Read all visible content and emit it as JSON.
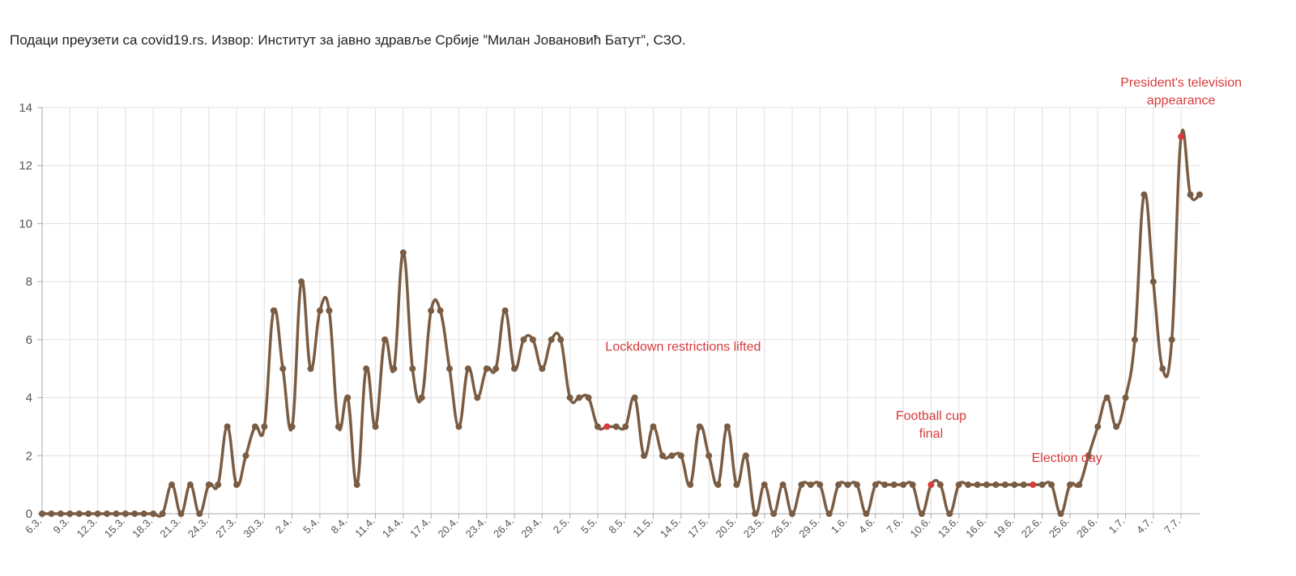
{
  "source_note": "Подаци преузети са covid19.rs. Извор: Институт за јавно здравље Србије ”Милан Јовановић Батут”, СЗО.",
  "colors": {
    "line": "#7a5c43",
    "highlight": "#d93a3a",
    "grid": "#e0e0e0",
    "axis": "#aaaaaa"
  },
  "chart_data": {
    "type": "line",
    "title": "",
    "xlabel": "",
    "ylabel": "",
    "ylim": [
      0,
      14
    ],
    "yticks": [
      0,
      2,
      4,
      6,
      8,
      10,
      12,
      14
    ],
    "grid": true,
    "x_start_date": "6.3.",
    "x_tick_labels": [
      "6.3.",
      "9.3.",
      "12.3.",
      "15.3.",
      "18.3.",
      "21.3.",
      "24.3.",
      "27.3.",
      "30.3.",
      "2.4.",
      "5.4.",
      "8.4.",
      "11.4.",
      "14.4.",
      "17.4.",
      "20.4.",
      "23.4.",
      "26.4.",
      "29.4.",
      "2.5.",
      "5.5.",
      "8.5.",
      "11.5.",
      "14.5.",
      "17.5.",
      "20.5.",
      "23.5.",
      "26.5.",
      "29.5.",
      "1.6.",
      "4.6.",
      "7.6.",
      "10.6.",
      "13.6.",
      "16.6.",
      "19.6.",
      "22.6.",
      "25.6.",
      "28.6.",
      "1.7.",
      "4.7.",
      "7.7."
    ],
    "series": [
      {
        "name": "",
        "values": [
          0,
          0,
          0,
          0,
          0,
          0,
          0,
          0,
          0,
          0,
          0,
          0,
          0,
          0,
          1,
          0,
          1,
          0,
          1,
          1,
          3,
          1,
          2,
          3,
          3,
          7,
          5,
          3,
          8,
          5,
          7,
          7,
          3,
          4,
          1,
          5,
          3,
          6,
          5,
          9,
          5,
          4,
          7,
          7,
          5,
          3,
          5,
          4,
          5,
          5,
          7,
          5,
          6,
          6,
          5,
          6,
          6,
          4,
          4,
          4,
          3,
          3,
          3,
          3,
          4,
          2,
          3,
          2,
          2,
          2,
          1,
          3,
          2,
          1,
          3,
          1,
          2,
          0,
          1,
          0,
          1,
          0,
          1,
          1,
          1,
          0,
          1,
          1,
          1,
          0,
          1,
          1,
          1,
          1,
          1,
          0,
          1,
          1,
          0,
          1,
          1,
          1,
          1,
          1,
          1,
          1,
          1,
          1,
          1,
          1,
          0,
          1,
          1,
          2,
          3,
          4,
          3,
          4,
          6,
          11,
          8,
          5,
          6,
          13,
          11,
          11
        ]
      }
    ],
    "annotations": [
      {
        "text_lines": [
          "Lockdown restrictions lifted"
        ],
        "index": 61,
        "value": 3
      },
      {
        "text_lines": [
          "Football cup",
          "final"
        ],
        "index": 96,
        "value": 1
      },
      {
        "text_lines": [
          "Election day"
        ],
        "index": 107,
        "value": 1
      },
      {
        "text_lines": [
          "President's television",
          "appearance"
        ],
        "index": 123,
        "value": 13
      }
    ]
  }
}
